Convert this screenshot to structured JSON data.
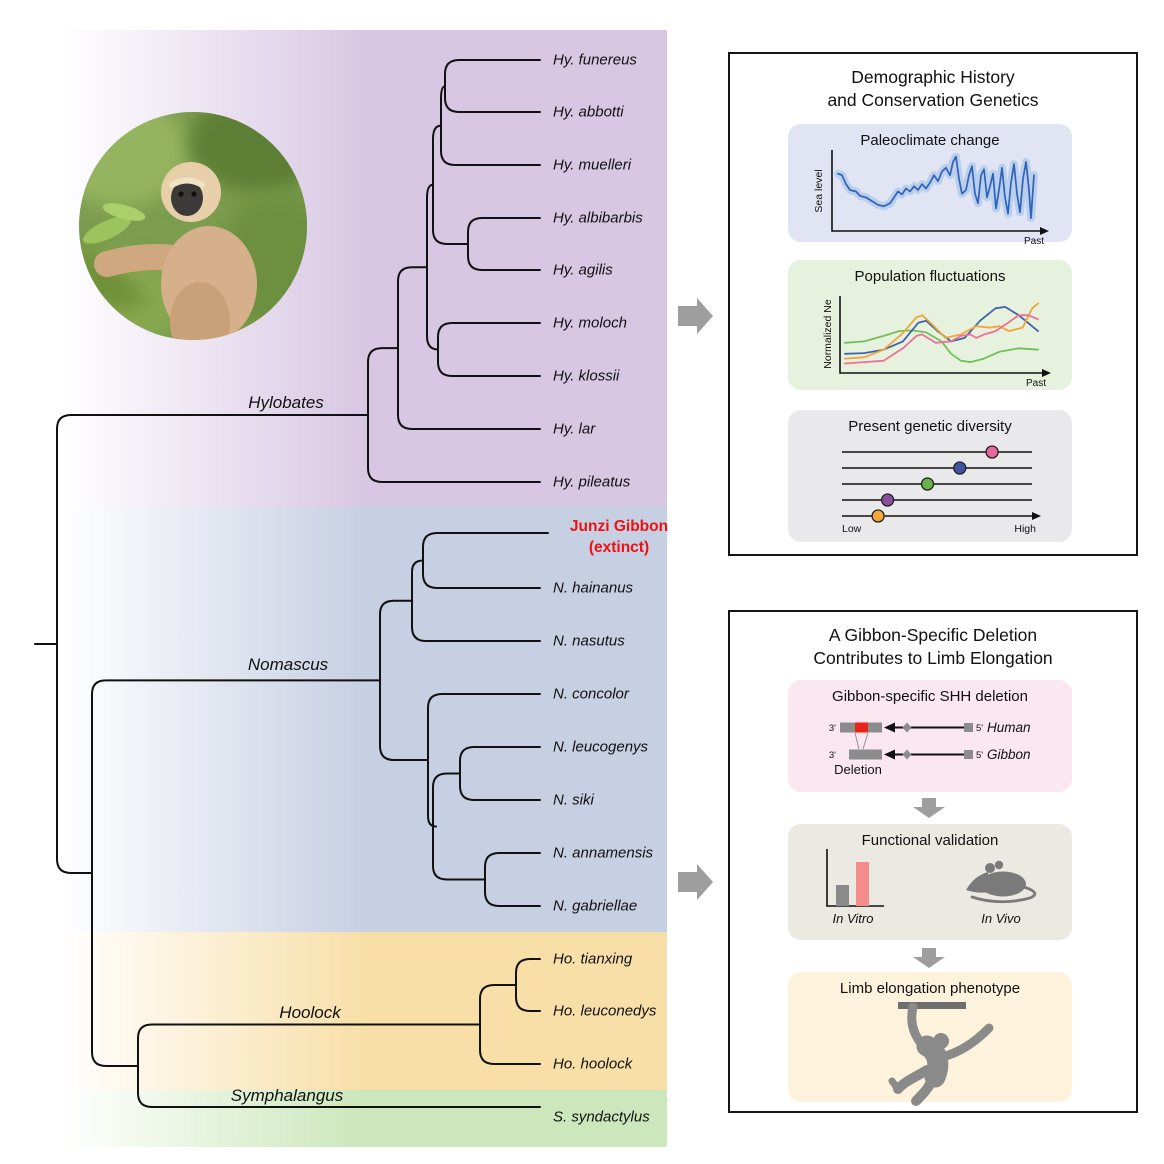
{
  "tree": {
    "genera": [
      {
        "label": "Hylobates"
      },
      {
        "label": "Nomascus"
      },
      {
        "label": "Hoolock"
      },
      {
        "label": "Symphalangus"
      }
    ],
    "tips": [
      {
        "label": "Hy. funereus"
      },
      {
        "label": "Hy. abbotti"
      },
      {
        "label": "Hy. muelleri"
      },
      {
        "label": "Hy. albibarbis"
      },
      {
        "label": "Hy. agilis"
      },
      {
        "label": "Hy. moloch"
      },
      {
        "label": "Hy. klossii"
      },
      {
        "label": "Hy. lar"
      },
      {
        "label": "Hy. pileatus"
      },
      {
        "label": "Junzi Gibbon",
        "sublabel": "(extinct)"
      },
      {
        "label": "N. hainanus"
      },
      {
        "label": "N. nasutus"
      },
      {
        "label": "N. concolor"
      },
      {
        "label": "N. leucogenys"
      },
      {
        "label": "N. siki"
      },
      {
        "label": "N. annamensis"
      },
      {
        "label": "N. gabriellae"
      },
      {
        "label": "Ho. tianxing"
      },
      {
        "label": "Ho. leuconedys"
      },
      {
        "label": "Ho. hoolock"
      },
      {
        "label": "S. syndactylus"
      }
    ]
  },
  "demography_panel": {
    "title_line1": "Demographic History",
    "title_line2": "and Conservation Genetics",
    "paleoclimate": {
      "title": "Paleoclimate change"
    },
    "population": {
      "title": "Population fluctuations"
    },
    "diversity": {
      "title": "Present genetic diversity"
    }
  },
  "deletion_panel": {
    "title_line1": "A Gibbon-Specific Deletion",
    "title_line2": "Contributes to Limb Elongation",
    "shh": {
      "title": "Gibbon-specific SHH deletion",
      "three_prime": "3'",
      "five_prime": "5'",
      "human_label": "Human",
      "gibbon_label": "Gibbon",
      "deletion_label": "Deletion"
    },
    "validation": {
      "title": "Functional validation",
      "in_vitro": "In Vitro",
      "in_vivo": "In Vivo"
    },
    "limb": {
      "title": "Limb elongation phenotype"
    }
  },
  "chart_data": {
    "paleoclimate": {
      "type": "line",
      "title": "Paleoclimate change",
      "ylabel": "Sea level",
      "xlabel": "Past",
      "line_color": "#2f62b8",
      "band_color": "#b9cfec",
      "points": [
        [
          0,
          0.28
        ],
        [
          0.02,
          0.3
        ],
        [
          0.04,
          0.42
        ],
        [
          0.06,
          0.5
        ],
        [
          0.09,
          0.52
        ],
        [
          0.11,
          0.58
        ],
        [
          0.14,
          0.6
        ],
        [
          0.17,
          0.65
        ],
        [
          0.2,
          0.7
        ],
        [
          0.23,
          0.72
        ],
        [
          0.26,
          0.68
        ],
        [
          0.28,
          0.6
        ],
        [
          0.3,
          0.52
        ],
        [
          0.32,
          0.56
        ],
        [
          0.34,
          0.48
        ],
        [
          0.36,
          0.52
        ],
        [
          0.38,
          0.45
        ],
        [
          0.4,
          0.5
        ],
        [
          0.42,
          0.42
        ],
        [
          0.44,
          0.48
        ],
        [
          0.46,
          0.4
        ],
        [
          0.48,
          0.3
        ],
        [
          0.5,
          0.38
        ],
        [
          0.52,
          0.25
        ],
        [
          0.54,
          0.2
        ],
        [
          0.56,
          0.3
        ],
        [
          0.575,
          0.12
        ],
        [
          0.59,
          0.05
        ],
        [
          0.605,
          0.35
        ],
        [
          0.62,
          0.55
        ],
        [
          0.64,
          0.5
        ],
        [
          0.655,
          0.3
        ],
        [
          0.67,
          0.18
        ],
        [
          0.685,
          0.55
        ],
        [
          0.7,
          0.68
        ],
        [
          0.715,
          0.3
        ],
        [
          0.73,
          0.22
        ],
        [
          0.745,
          0.6
        ],
        [
          0.76,
          0.45
        ],
        [
          0.775,
          0.28
        ],
        [
          0.79,
          0.75
        ],
        [
          0.805,
          0.5
        ],
        [
          0.82,
          0.2
        ],
        [
          0.835,
          0.6
        ],
        [
          0.85,
          0.82
        ],
        [
          0.865,
          0.4
        ],
        [
          0.88,
          0.15
        ],
        [
          0.895,
          0.55
        ],
        [
          0.91,
          0.8
        ],
        [
          0.925,
          0.35
        ],
        [
          0.94,
          0.12
        ],
        [
          0.955,
          0.5
        ],
        [
          0.965,
          0.88
        ],
        [
          0.98,
          0.3
        ]
      ]
    },
    "population": {
      "type": "line",
      "title": "Population fluctuations",
      "ylabel": "Normalized Ne",
      "xlabel": "Past",
      "series": [
        {
          "name": "series-1",
          "color": "#72bf5a",
          "points": [
            [
              0,
              0.62
            ],
            [
              0.1,
              0.6
            ],
            [
              0.2,
              0.52
            ],
            [
              0.28,
              0.45
            ],
            [
              0.35,
              0.44
            ],
            [
              0.42,
              0.47
            ],
            [
              0.5,
              0.6
            ],
            [
              0.55,
              0.78
            ],
            [
              0.6,
              0.88
            ],
            [
              0.65,
              0.9
            ],
            [
              0.72,
              0.85
            ],
            [
              0.8,
              0.75
            ],
            [
              0.9,
              0.7
            ],
            [
              1,
              0.72
            ]
          ]
        },
        {
          "name": "series-2",
          "color": "#3f63ad",
          "points": [
            [
              0,
              0.78
            ],
            [
              0.1,
              0.77
            ],
            [
              0.2,
              0.72
            ],
            [
              0.3,
              0.6
            ],
            [
              0.38,
              0.33
            ],
            [
              0.42,
              0.3
            ],
            [
              0.48,
              0.45
            ],
            [
              0.55,
              0.6
            ],
            [
              0.62,
              0.55
            ],
            [
              0.7,
              0.3
            ],
            [
              0.78,
              0.12
            ],
            [
              0.83,
              0.1
            ],
            [
              0.9,
              0.22
            ],
            [
              1,
              0.45
            ]
          ]
        },
        {
          "name": "series-3",
          "color": "#f0a63a",
          "points": [
            [
              0,
              0.85
            ],
            [
              0.1,
              0.83
            ],
            [
              0.2,
              0.72
            ],
            [
              0.3,
              0.48
            ],
            [
              0.37,
              0.25
            ],
            [
              0.4,
              0.22
            ],
            [
              0.45,
              0.35
            ],
            [
              0.52,
              0.55
            ],
            [
              0.6,
              0.5
            ],
            [
              0.68,
              0.38
            ],
            [
              0.75,
              0.4
            ],
            [
              0.8,
              0.38
            ],
            [
              0.85,
              0.45
            ],
            [
              0.92,
              0.4
            ],
            [
              0.97,
              0.12
            ],
            [
              1,
              0.05
            ]
          ]
        },
        {
          "name": "series-4",
          "color": "#ee7096",
          "points": [
            [
              0,
              0.92
            ],
            [
              0.1,
              0.9
            ],
            [
              0.2,
              0.88
            ],
            [
              0.3,
              0.7
            ],
            [
              0.37,
              0.52
            ],
            [
              0.4,
              0.5
            ],
            [
              0.47,
              0.62
            ],
            [
              0.55,
              0.6
            ],
            [
              0.6,
              0.52
            ],
            [
              0.65,
              0.5
            ],
            [
              0.68,
              0.55
            ],
            [
              0.72,
              0.5
            ],
            [
              0.78,
              0.45
            ],
            [
              0.85,
              0.32
            ],
            [
              0.9,
              0.22
            ],
            [
              0.95,
              0.22
            ],
            [
              1,
              0.28
            ]
          ]
        }
      ]
    },
    "diversity": {
      "type": "scatter",
      "title": "Present genetic diversity",
      "low_label": "Low",
      "high_label": "High",
      "dots": [
        {
          "row": 0,
          "pos": 0.79,
          "color": "#e8679c"
        },
        {
          "row": 1,
          "pos": 0.62,
          "color": "#3f55a0"
        },
        {
          "row": 2,
          "pos": 0.45,
          "color": "#69b34b"
        },
        {
          "row": 3,
          "pos": 0.24,
          "color": "#8b4fa0"
        },
        {
          "row": 4,
          "pos": 0.19,
          "color": "#f2a93b"
        }
      ]
    }
  },
  "colors": {
    "band_hylobates": "#d8c7e3",
    "band_nomascus": "#c7cfe3",
    "band_hoolock": "#f8dfa8",
    "band_symphalangus": "#cce7bb",
    "extinct_red": "#ee1111",
    "arrow_gray": "#9e9e9e",
    "deletion_red": "#e8231a"
  }
}
